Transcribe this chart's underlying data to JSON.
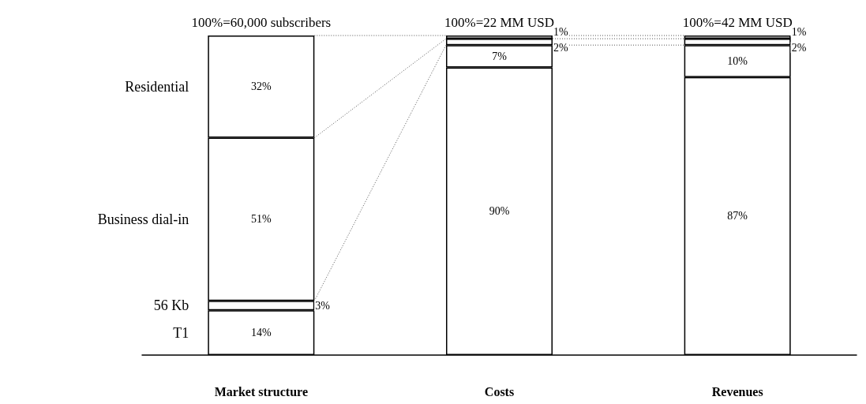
{
  "chart_data": {
    "type": "bar",
    "stacked": true,
    "categories": [
      "Market structure",
      "Costs",
      "Revenues"
    ],
    "series": [
      {
        "name": "T1",
        "color": "#ffffff",
        "values": [
          14,
          90,
          87
        ],
        "value_labels": [
          "14%",
          "90%",
          "87%"
        ]
      },
      {
        "name": "56 Kb",
        "color": "#ffffff",
        "values": [
          3,
          7,
          10
        ],
        "value_labels": [
          "3%",
          "7%",
          "10%"
        ]
      },
      {
        "name": "Business dial-in",
        "color": "#ffffff",
        "values": [
          51,
          2,
          2
        ],
        "value_labels": [
          "51%",
          "2%",
          "2%"
        ]
      },
      {
        "name": "Residential",
        "color": "#ffffff",
        "values": [
          32,
          1,
          1
        ],
        "value_labels": [
          "32%",
          "1%",
          "1%"
        ]
      }
    ],
    "totals": [
      "100%=60,000 subscribers",
      "100%=22 MM USD",
      "100%=42 MM USD"
    ],
    "legend": false
  }
}
